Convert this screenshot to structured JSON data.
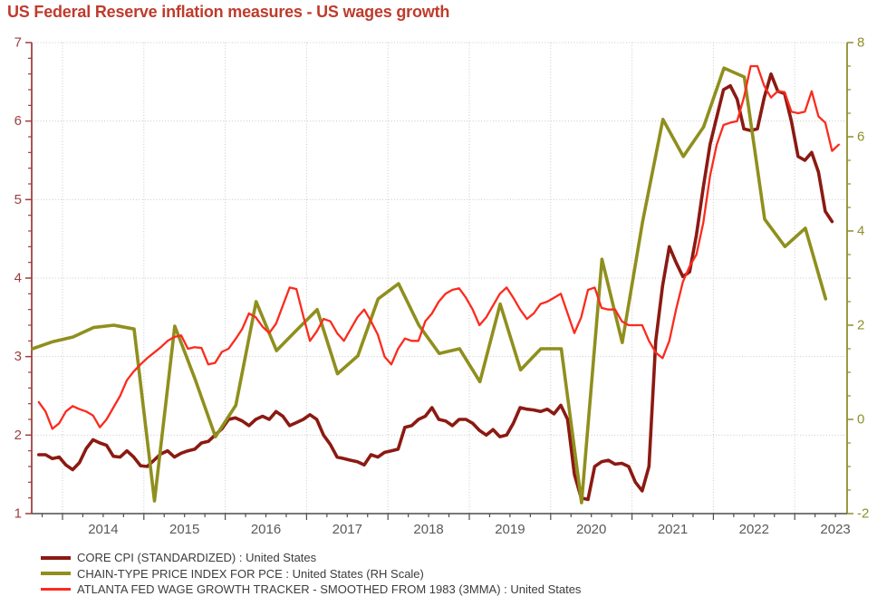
{
  "title": "US Federal Reserve inflation measures - US wages growth",
  "chart_data": {
    "type": "line",
    "title": "US Federal Reserve inflation measures - US wages growth",
    "title_color": "#bf3b2c",
    "background": "#ffffff",
    "grid": true,
    "grid_color": "#c7c7c7",
    "legend_position": "bottom-left",
    "x_axis": {
      "year_labels": [
        "2014",
        "2015",
        "2016",
        "2017",
        "2018",
        "2019",
        "2020",
        "2021",
        "2022",
        "2023"
      ],
      "range": [
        2013.6,
        2023.66
      ],
      "minor_tick_step_years": 0.25,
      "axis_color": "#4d4d4d",
      "label_color": "#5a5a5a"
    },
    "left_axis": {
      "range": [
        1,
        7
      ],
      "tick_labels": [
        "7",
        "6",
        "5",
        "4",
        "3",
        "2",
        "1"
      ],
      "major_ticks": [
        7,
        6,
        5,
        4,
        3,
        2,
        1
      ],
      "minor_step": 0.2,
      "gridline_levels": [
        2,
        3,
        4,
        5,
        6,
        7
      ],
      "axis_color": "#a85555",
      "label_color": "#9c3e3e"
    },
    "right_axis": {
      "range": [
        -2,
        8
      ],
      "tick_labels": [
        "8",
        "6",
        "4",
        "2",
        "0",
        "-2"
      ],
      "major_ticks": [
        8,
        6,
        4,
        2,
        0,
        -2
      ],
      "minor_step": 0.5,
      "axis_color": "#8f8f2c",
      "label_color": "#8f8f2c"
    },
    "series": [
      {
        "name": "CORE CPI (STANDARDIZED) : United States",
        "axis": "left",
        "color": "#8b1a12",
        "line_width": 3.6,
        "frequency": "monthly",
        "x_start": 2013.7083,
        "x_step": 0.0833333,
        "values": [
          1.75,
          1.75,
          1.7,
          1.72,
          1.62,
          1.56,
          1.65,
          1.83,
          1.94,
          1.9,
          1.87,
          1.73,
          1.72,
          1.8,
          1.72,
          1.61,
          1.6,
          1.68,
          1.76,
          1.8,
          1.72,
          1.77,
          1.8,
          1.82,
          1.9,
          1.92,
          2.0,
          2.08,
          2.2,
          2.22,
          2.18,
          2.12,
          2.2,
          2.24,
          2.2,
          2.3,
          2.24,
          2.12,
          2.16,
          2.2,
          2.26,
          2.2,
          2.0,
          1.88,
          1.72,
          1.7,
          1.68,
          1.66,
          1.62,
          1.75,
          1.72,
          1.78,
          1.8,
          1.82,
          2.1,
          2.12,
          2.2,
          2.24,
          2.35,
          2.2,
          2.18,
          2.12,
          2.2,
          2.2,
          2.15,
          2.06,
          2.0,
          2.07,
          1.98,
          2.0,
          2.15,
          2.35,
          2.33,
          2.32,
          2.3,
          2.33,
          2.27,
          2.38,
          2.2,
          1.5,
          1.2,
          1.18,
          1.6,
          1.66,
          1.68,
          1.63,
          1.64,
          1.6,
          1.4,
          1.29,
          1.6,
          3.2,
          3.9,
          4.4,
          4.2,
          4.02,
          4.08,
          4.55,
          5.15,
          5.7,
          6.05,
          6.4,
          6.45,
          6.28,
          5.9,
          5.88,
          5.9,
          6.3,
          6.6,
          6.38,
          6.35,
          6.0,
          5.55,
          5.5,
          5.6,
          5.35,
          4.85,
          4.72
        ]
      },
      {
        "name": "CHAIN-TYPE PRICE INDEX FOR PCE : United States (RH Scale)",
        "axis": "right",
        "color": "#8f8f1e",
        "line_width": 3.6,
        "frequency": "quarterly",
        "x_start": 2013.63,
        "x_step": 0.25,
        "values": [
          1.5,
          1.65,
          1.75,
          1.95,
          2.0,
          1.92,
          -1.73,
          1.98,
          0.85,
          -0.37,
          0.3,
          2.5,
          1.46,
          1.9,
          2.33,
          0.97,
          1.35,
          2.56,
          2.88,
          2.0,
          1.4,
          1.5,
          0.8,
          2.45,
          1.05,
          1.5,
          1.5,
          -1.77,
          3.4,
          1.63,
          4.2,
          6.37,
          5.58,
          6.21,
          7.46,
          7.27,
          4.25,
          3.67,
          4.06,
          2.56
        ]
      },
      {
        "name": "ATLANTA FED WAGE GROWTH TRACKER - SMOOTHED FROM 1983 (3MMA) : United States",
        "axis": "left",
        "color": "#fb2b1e",
        "line_width": 2.3,
        "frequency": "monthly",
        "x_start": 2013.7083,
        "x_step": 0.0833333,
        "values": [
          2.42,
          2.3,
          2.08,
          2.15,
          2.3,
          2.37,
          2.33,
          2.3,
          2.25,
          2.1,
          2.2,
          2.35,
          2.5,
          2.7,
          2.81,
          2.9,
          2.98,
          3.05,
          3.12,
          3.2,
          3.25,
          3.27,
          3.1,
          3.12,
          3.11,
          2.9,
          2.92,
          3.06,
          3.1,
          3.22,
          3.35,
          3.55,
          3.5,
          3.38,
          3.3,
          3.42,
          3.65,
          3.88,
          3.86,
          3.52,
          3.2,
          3.32,
          3.48,
          3.45,
          3.3,
          3.2,
          3.35,
          3.5,
          3.6,
          3.45,
          3.28,
          3.0,
          2.9,
          3.1,
          3.23,
          3.2,
          3.2,
          3.45,
          3.55,
          3.7,
          3.8,
          3.85,
          3.87,
          3.75,
          3.6,
          3.4,
          3.5,
          3.65,
          3.8,
          3.88,
          3.75,
          3.6,
          3.48,
          3.55,
          3.67,
          3.7,
          3.75,
          3.8,
          3.55,
          3.3,
          3.5,
          3.85,
          3.88,
          3.62,
          3.6,
          3.6,
          3.45,
          3.4,
          3.4,
          3.4,
          3.2,
          3.05,
          2.98,
          3.2,
          3.6,
          3.95,
          4.15,
          4.3,
          4.7,
          5.3,
          5.7,
          5.95,
          5.98,
          6.0,
          6.3,
          6.7,
          6.7,
          6.45,
          6.3,
          6.38,
          6.37,
          6.12,
          6.1,
          6.12,
          6.38,
          6.06,
          5.98,
          5.62,
          5.7
        ]
      }
    ]
  }
}
